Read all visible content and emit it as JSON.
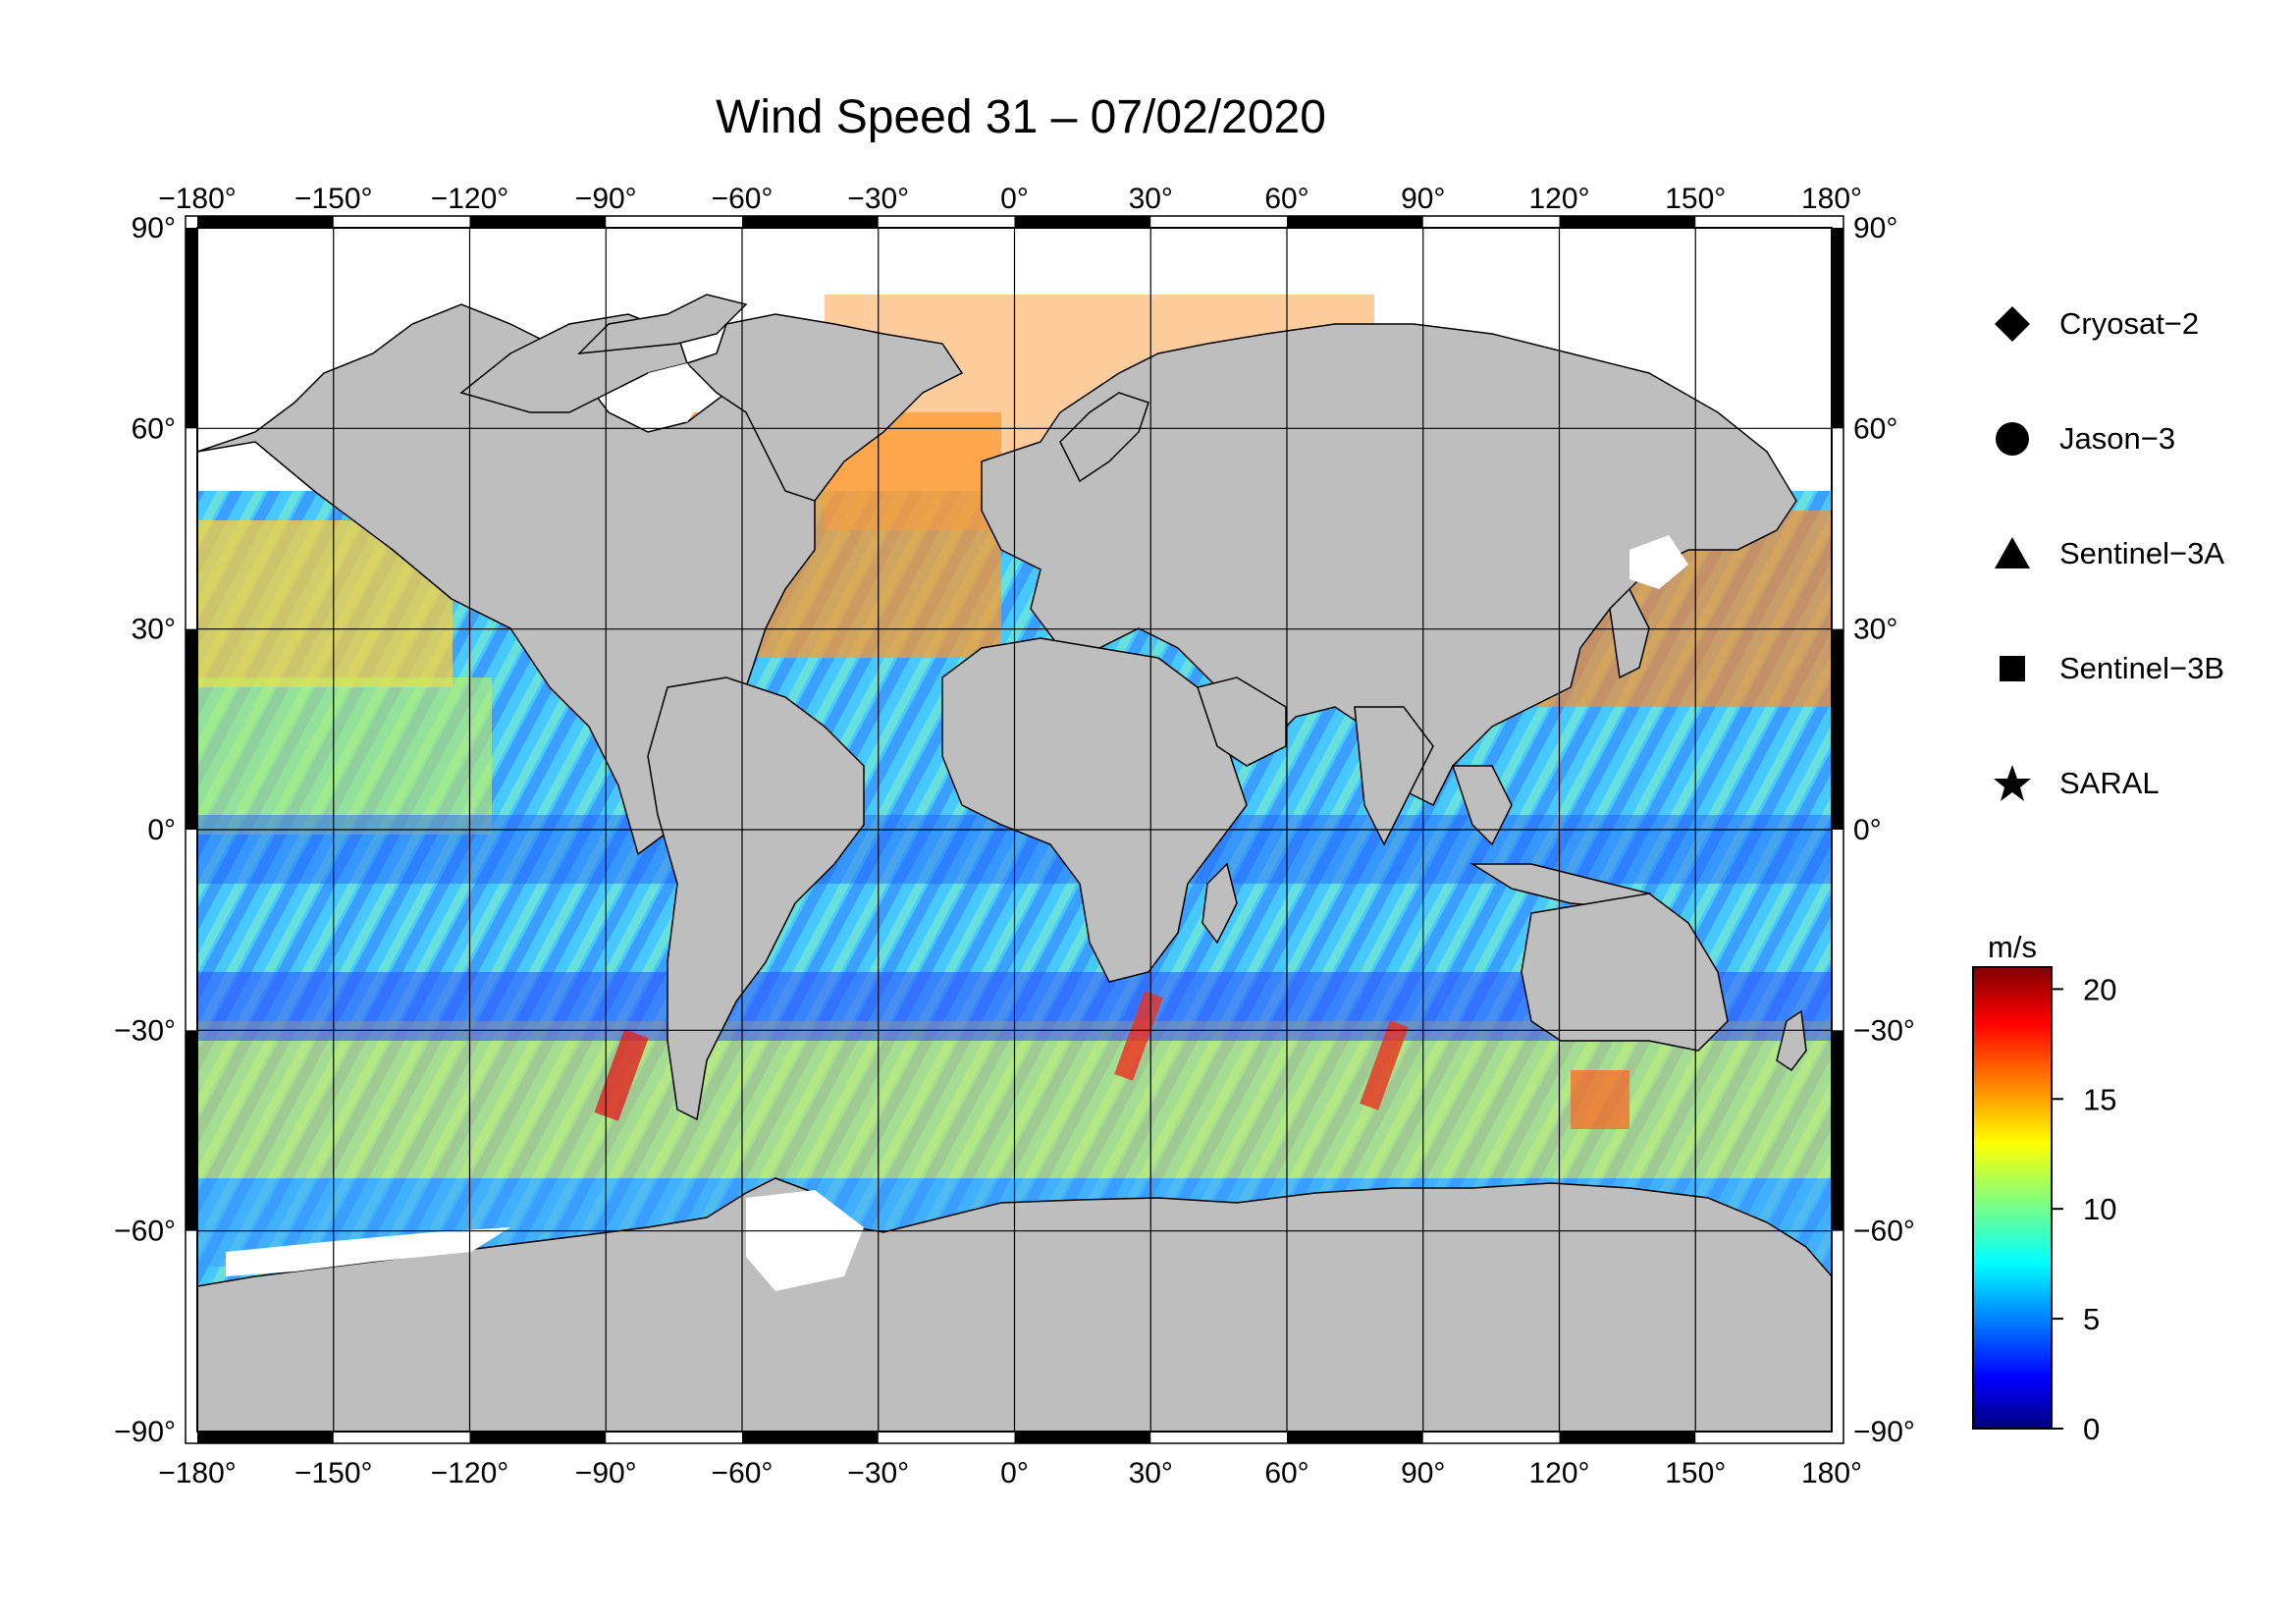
{
  "title": "Wind Speed 31 – 07/02/2020",
  "map": {
    "projection": "equirectangular",
    "lon_range": [
      -180,
      180
    ],
    "lat_range": [
      -90,
      90
    ],
    "lon_ticks": [
      -180,
      -150,
      -120,
      -90,
      -60,
      -30,
      0,
      30,
      60,
      90,
      120,
      150,
      180
    ],
    "lat_ticks": [
      90,
      60,
      30,
      0,
      -30,
      -60,
      -90
    ],
    "lon_tick_labels": [
      "−180°",
      "−150°",
      "−120°",
      "−90°",
      "−60°",
      "−30°",
      "0°",
      "30°",
      "60°",
      "90°",
      "120°",
      "150°",
      "180°"
    ],
    "lat_tick_labels": [
      "90°",
      "60°",
      "30°",
      "0°",
      "−30°",
      "−60°",
      "−90°"
    ],
    "land_color": "#bebebe",
    "ice_color": "#ffffff",
    "grid": true
  },
  "legend": {
    "items": [
      {
        "label": "Cryosat−2",
        "symbol": "diamond"
      },
      {
        "label": "Jason−3",
        "symbol": "circle"
      },
      {
        "label": "Sentinel−3A",
        "symbol": "triangle"
      },
      {
        "label": "Sentinel−3B",
        "symbol": "square"
      },
      {
        "label": "SARAL",
        "symbol": "star"
      }
    ]
  },
  "colorbar": {
    "unit": "m/s",
    "min": 0,
    "max": 21,
    "ticks": [
      0,
      5,
      10,
      15,
      20
    ],
    "tick_labels": [
      "0",
      "5",
      "10",
      "15",
      "20"
    ],
    "colormap": "jet"
  }
}
